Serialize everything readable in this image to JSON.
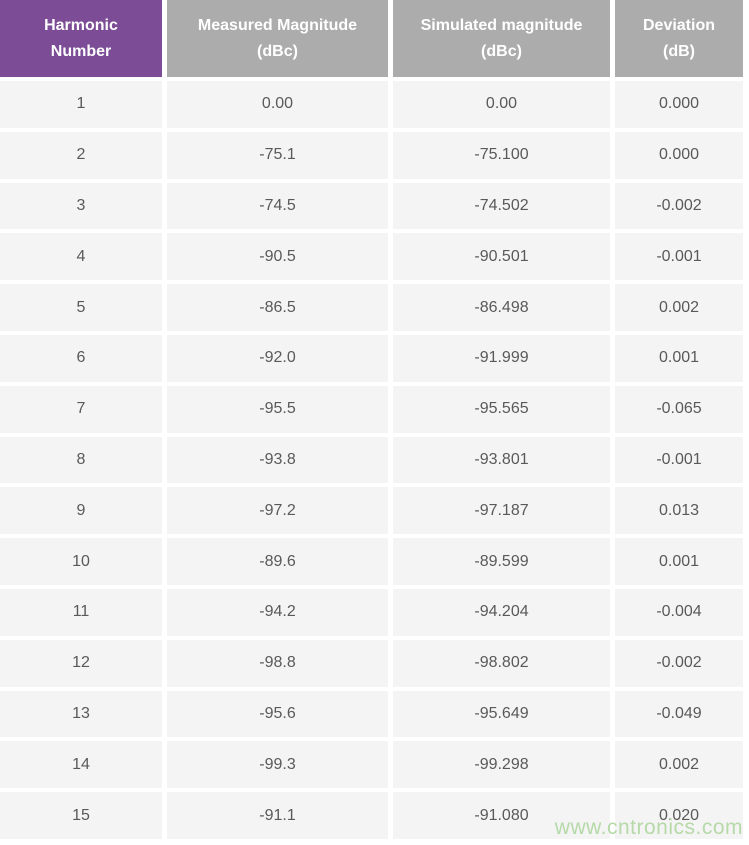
{
  "table": {
    "columns": [
      {
        "id": "harmonic",
        "label": "Harmonic\nNumber"
      },
      {
        "id": "measured",
        "label": "Measured Magnitude\n(dBc)"
      },
      {
        "id": "simulated",
        "label": "Simulated magnitude\n(dBc)"
      },
      {
        "id": "deviation",
        "label": "Deviation\n(dB)"
      }
    ],
    "rows": [
      {
        "harmonic": "1",
        "measured": "0.00",
        "simulated": "0.00",
        "deviation": "0.000"
      },
      {
        "harmonic": "2",
        "measured": "-75.1",
        "simulated": "-75.100",
        "deviation": "0.000"
      },
      {
        "harmonic": "3",
        "measured": "-74.5",
        "simulated": "-74.502",
        "deviation": "-0.002"
      },
      {
        "harmonic": "4",
        "measured": "-90.5",
        "simulated": "-90.501",
        "deviation": "-0.001"
      },
      {
        "harmonic": "5",
        "measured": "-86.5",
        "simulated": "-86.498",
        "deviation": "0.002"
      },
      {
        "harmonic": "6",
        "measured": "-92.0",
        "simulated": "-91.999",
        "deviation": "0.001"
      },
      {
        "harmonic": "7",
        "measured": "-95.5",
        "simulated": "-95.565",
        "deviation": "-0.065"
      },
      {
        "harmonic": "8",
        "measured": "-93.8",
        "simulated": "-93.801",
        "deviation": "-0.001"
      },
      {
        "harmonic": "9",
        "measured": "-97.2",
        "simulated": "-97.187",
        "deviation": "0.013"
      },
      {
        "harmonic": "10",
        "measured": "-89.6",
        "simulated": "-89.599",
        "deviation": "0.001"
      },
      {
        "harmonic": "11",
        "measured": "-94.2",
        "simulated": "-94.204",
        "deviation": "-0.004"
      },
      {
        "harmonic": "12",
        "measured": "-98.8",
        "simulated": "-98.802",
        "deviation": "-0.002"
      },
      {
        "harmonic": "13",
        "measured": "-95.6",
        "simulated": "-95.649",
        "deviation": "-0.049"
      },
      {
        "harmonic": "14",
        "measured": "-99.3",
        "simulated": "-99.298",
        "deviation": "0.002"
      },
      {
        "harmonic": "15",
        "measured": "-91.1",
        "simulated": "-91.080",
        "deviation": "0.020"
      }
    ]
  },
  "watermark": {
    "text": "www.cntronics.com"
  },
  "colors": {
    "header_primary": "#7C4D96",
    "header_secondary": "#ACACAC",
    "row_background": "#F5F4F4",
    "gutter": "#FFFFFF",
    "header_text": "#FFFFFF",
    "body_text": "#595959",
    "watermark_text": "#B5D9A8"
  },
  "chart_data": {
    "type": "table",
    "title": "",
    "columns": [
      "Harmonic Number",
      "Measured Magnitude (dBc)",
      "Simulated magnitude (dBc)",
      "Deviation (dB)"
    ],
    "categories": [
      1,
      2,
      3,
      4,
      5,
      6,
      7,
      8,
      9,
      10,
      11,
      12,
      13,
      14,
      15
    ],
    "series": [
      {
        "name": "Measured Magnitude (dBc)",
        "values": [
          0.0,
          -75.1,
          -74.5,
          -90.5,
          -86.5,
          -92.0,
          -95.5,
          -93.8,
          -97.2,
          -89.6,
          -94.2,
          -98.8,
          -95.6,
          -99.3,
          -91.1
        ]
      },
      {
        "name": "Simulated magnitude (dBc)",
        "values": [
          0.0,
          -75.1,
          -74.502,
          -90.501,
          -86.498,
          -91.999,
          -95.565,
          -93.801,
          -97.187,
          -89.599,
          -94.204,
          -98.802,
          -95.649,
          -99.298,
          -91.08
        ]
      },
      {
        "name": "Deviation (dB)",
        "values": [
          0.0,
          0.0,
          -0.002,
          -0.001,
          0.002,
          0.001,
          -0.065,
          -0.001,
          0.013,
          0.001,
          -0.004,
          -0.002,
          -0.049,
          0.002,
          0.02
        ]
      }
    ]
  }
}
